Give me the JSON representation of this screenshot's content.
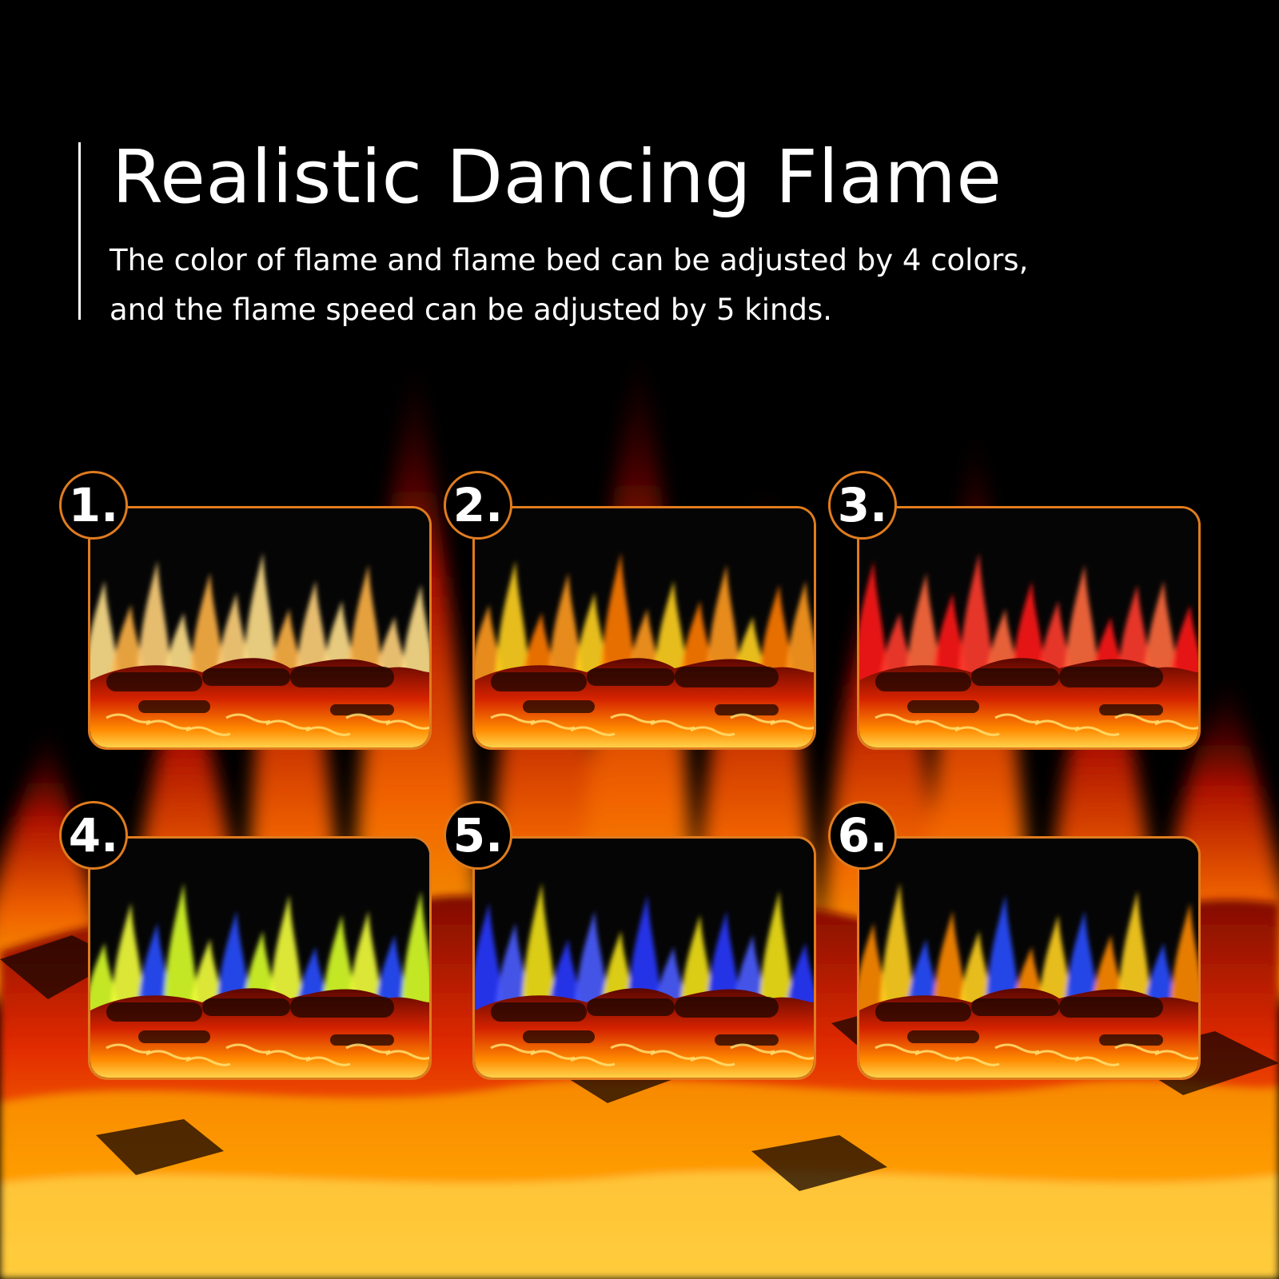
{
  "header": {
    "title": "Realistic Dancing Flame",
    "subtitle_line1": "The color of flame and flame bed can be adjusted by 4 colors,",
    "subtitle_line2": "and the flame speed can be adjusted by 5 kinds."
  },
  "colors": {
    "accent_border": "#e07c1e",
    "background": "#000000"
  },
  "options": [
    {
      "label": "1.",
      "flame_colors": [
        "#ffe08a",
        "#ffb347",
        "#ffd27a"
      ]
    },
    {
      "label": "2.",
      "flame_colors": [
        "#ff9a1f",
        "#ffd21f",
        "#ff7a00"
      ]
    },
    {
      "label": "3.",
      "flame_colors": [
        "#ff1a1a",
        "#ff3b2b",
        "#ff6a3d"
      ]
    },
    {
      "label": "4.",
      "flame_colors": [
        "#d8ff2a",
        "#f2ff3a",
        "#2a4dff"
      ]
    },
    {
      "label": "5.",
      "flame_colors": [
        "#2a38ff",
        "#4a5cff",
        "#f2e21a"
      ]
    },
    {
      "label": "6.",
      "flame_colors": [
        "#ff8a00",
        "#ffd21f",
        "#2a4dff"
      ]
    }
  ]
}
